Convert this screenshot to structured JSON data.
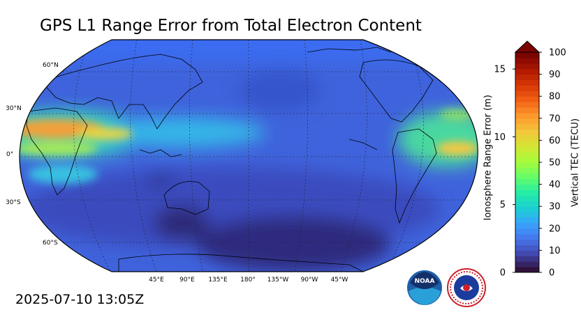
{
  "title": "GPS L1 Range Error from Total Electron Content",
  "timestamp": "2025-07-10 13:05Z",
  "map": {
    "projection": "Robinson",
    "central_longitude": "180°",
    "lat_labels": [
      "60°N",
      "30°N",
      "0°",
      "30°S",
      "60°S"
    ],
    "lon_labels": [
      "45°E",
      "90°E",
      "135°E",
      "180°",
      "135°W",
      "90°W",
      "45°W"
    ],
    "gridlines": "dotted",
    "base_color": "#3a5fd8",
    "features": [
      {
        "name": "equatorial-anomaly-africa",
        "color": "#f2a03a"
      },
      {
        "name": "equatorial-anomaly-atlantic",
        "color": "#f5c842"
      },
      {
        "name": "southern-ocean-low",
        "color": "#3a2a6e"
      }
    ]
  },
  "colorbar": {
    "left_axis_label": "Ionosphere Range Error (m)",
    "left_ticks": [
      "0",
      "5",
      "10",
      "15"
    ],
    "right_axis_label": "Vertical TEC (TECU)",
    "right_ticks": [
      "0",
      "10",
      "20",
      "30",
      "40",
      "50",
      "60",
      "70",
      "80",
      "90",
      "100"
    ],
    "extend": "max",
    "colors": [
      "#30123b",
      "#4145ab",
      "#4675ed",
      "#39a2fc",
      "#1bcfd4",
      "#24eca6",
      "#61fc6c",
      "#a4fc3b",
      "#d1e834",
      "#f3c63a",
      "#fe9b2d",
      "#f36315",
      "#d93806",
      "#b11901",
      "#7a0402"
    ]
  },
  "logos": {
    "noaa_text": "NOAA",
    "nws_text": "NATIONAL WEATHER SERVICE"
  }
}
